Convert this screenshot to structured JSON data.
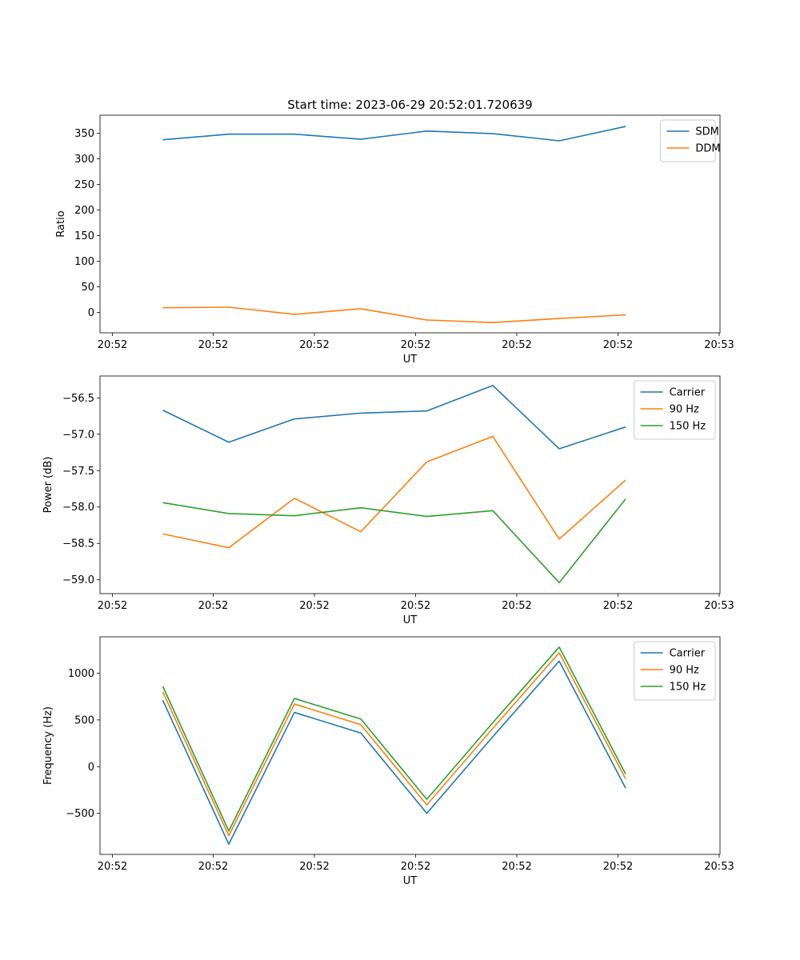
{
  "title": "Start time: 2023-06-29 20:52:01.720639",
  "chart_data": [
    {
      "type": "line",
      "xlabel": "UT",
      "ylabel": "Ratio",
      "x_tick_labels": [
        "20:52",
        "20:52",
        "20:52",
        "20:52",
        "20:52",
        "20:52",
        "20:53"
      ],
      "ylim": [
        -40,
        385
      ],
      "yticks": [
        0,
        50,
        100,
        150,
        200,
        250,
        300,
        350
      ],
      "ytick_labels": [
        "0",
        "50",
        "100",
        "150",
        "200",
        "250",
        "300",
        "350"
      ],
      "legend_position": "upper right",
      "series": [
        {
          "name": "SDM",
          "color": "#1f77b4",
          "values": [
            337,
            348,
            348,
            338,
            354,
            349,
            335,
            363
          ]
        },
        {
          "name": "DDM",
          "color": "#ff7f0e",
          "values": [
            9,
            10,
            -4,
            7,
            -15,
            -20,
            -12,
            -5
          ]
        }
      ]
    },
    {
      "type": "line",
      "xlabel": "UT",
      "ylabel": "Power (dB)",
      "x_tick_labels": [
        "20:52",
        "20:52",
        "20:52",
        "20:52",
        "20:52",
        "20:52",
        "20:53"
      ],
      "ylim": [
        -59.19,
        -56.2
      ],
      "yticks": [
        -59.0,
        -58.5,
        -58.0,
        -57.5,
        -57.0,
        -56.5
      ],
      "ytick_labels": [
        "−59.0",
        "−58.5",
        "−58.0",
        "−57.5",
        "−57.0",
        "−56.5"
      ],
      "legend_position": "upper right",
      "series": [
        {
          "name": "Carrier",
          "color": "#1f77b4",
          "values": [
            -56.67,
            -57.11,
            -56.79,
            -56.71,
            -56.68,
            -56.33,
            -57.2,
            -56.9
          ]
        },
        {
          "name": "90 Hz",
          "color": "#ff7f0e",
          "values": [
            -58.37,
            -58.56,
            -57.88,
            -58.34,
            -57.38,
            -57.03,
            -58.44,
            -57.63
          ]
        },
        {
          "name": "150 Hz",
          "color": "#2ca02c",
          "values": [
            -57.94,
            -58.09,
            -58.12,
            -58.01,
            -58.13,
            -58.05,
            -59.04,
            -57.89
          ]
        }
      ]
    },
    {
      "type": "line",
      "xlabel": "UT",
      "ylabel": "Frequency (Hz)",
      "x_tick_labels": [
        "20:52",
        "20:52",
        "20:52",
        "20:52",
        "20:52",
        "20:52",
        "20:53"
      ],
      "ylim": [
        -940,
        1390
      ],
      "yticks": [
        -500,
        0,
        500,
        1000
      ],
      "ytick_labels": [
        "−500",
        "0",
        "500",
        "1000"
      ],
      "legend_position": "upper right",
      "series": [
        {
          "name": "Carrier",
          "color": "#1f77b4",
          "values": [
            710,
            -830,
            580,
            360,
            -500,
            320,
            1130,
            -230
          ]
        },
        {
          "name": "90 Hz",
          "color": "#ff7f0e",
          "values": [
            800,
            -740,
            670,
            450,
            -410,
            410,
            1220,
            -130
          ]
        },
        {
          "name": "150 Hz",
          "color": "#2ca02c",
          "values": [
            860,
            -690,
            730,
            510,
            -350,
            470,
            1280,
            -80
          ]
        }
      ]
    }
  ]
}
